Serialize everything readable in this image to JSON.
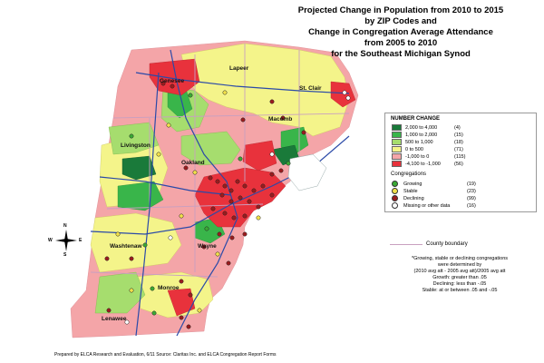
{
  "title_lines": [
    "Projected Change in Population from 2010 to 2015",
    "by ZIP Codes and",
    "Change in Congregation Average Attendance",
    "from 2005 to 2010",
    "for the Southeast Michigan Synod"
  ],
  "legend": {
    "number_change_heading": "NUMBER CHANGE",
    "classes": [
      {
        "label": "2,000 to  4,000",
        "count": "(4)",
        "color": "#1a7a3a"
      },
      {
        "label": "1,000 to  2,000",
        "count": "(15)",
        "color": "#39b54a"
      },
      {
        "label": "500 to  1,000",
        "count": "(18)",
        "color": "#a6dd6e"
      },
      {
        "label": "0 to    500",
        "count": "(71)",
        "color": "#f4f48a"
      },
      {
        "label": "-1,000 to      0",
        "count": "(115)",
        "color": "#f4a5a8"
      },
      {
        "label": "-4,100 to -1,000",
        "count": "(56)",
        "color": "#e8323c"
      }
    ],
    "congregations_heading": "Congregations",
    "congregations": [
      {
        "label": "Growing",
        "count": "(19)",
        "color": "#3aa935"
      },
      {
        "label": "Stable",
        "count": "(23)",
        "color": "#f2e14b"
      },
      {
        "label": "Declining",
        "count": "(99)",
        "color": "#9b1b1e"
      },
      {
        "label": "Missing or other data",
        "count": "(16)",
        "color": "#ffffff"
      }
    ],
    "county_boundary": "County boundary"
  },
  "note_lines": [
    "*Growing, stable or declining congregations",
    "were determined by",
    "(2010 avg att - 2005 avg att)/2005 avg att",
    "Growth:  greater than .05",
    "Declining:  less than  -.05",
    "Stable:  at or between .05 and -.05"
  ],
  "source": "Prepared by ELCA Research and Evaluation, 6/11   Source: Claritas Inc. and ELCA Congregation Report Forms",
  "counties": {
    "genesee": "Genesee",
    "lapeer": "Lapeer",
    "st_clair": "St. Clair",
    "macomb": "Macomb",
    "livingston": "Livingston",
    "oakland": "Oakland",
    "washtenaw": "Washtenaw",
    "wayne": "Wayne",
    "monroe": "Monroe",
    "lenawee": "Lenawee"
  },
  "compass": {
    "n": "N",
    "s": "S",
    "e": "E",
    "w": "W"
  },
  "colors": {
    "dark_green": "#1a7a3a",
    "green": "#39b54a",
    "light_green": "#a6dd6e",
    "yellow": "#f4f48a",
    "pink": "#f4a5a8",
    "red": "#e8323c",
    "water": "#ffffff",
    "road": "#2b4aa8",
    "county_boundary": "#c9a0c0"
  }
}
